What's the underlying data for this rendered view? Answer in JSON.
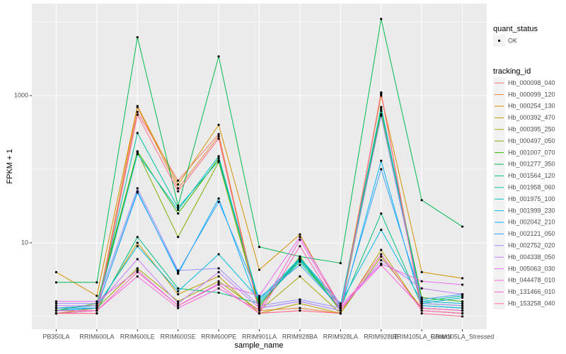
{
  "chart_data": {
    "type": "line",
    "x_label": "sample_name",
    "y_label": "FPKM + 1",
    "log_y": true,
    "grid": true,
    "ylim": [
      0.67,
      17800
    ],
    "yticks": [
      10,
      1000
    ],
    "minor_yticks": [
      1,
      100,
      10000
    ],
    "categories": [
      "PB350LA",
      "RRIM600LA",
      "RRIM600LE",
      "RRIM600SE",
      "RRIM600PE",
      "RRIM901LA",
      "RRIM928BA",
      "RRIM928LA",
      "RRIM928LE",
      "RRIM105LA_Control",
      "RRIM105LA_Stressed"
    ],
    "point_legend_title": "quant_status",
    "point_legend_label": "OK",
    "point_color": "#000000",
    "legend_title": "tracking_id",
    "legend_position": "right",
    "series": [
      {
        "name": "Hb_000098_040",
        "color": "#F8766D",
        "values": [
          1.1,
          1.1,
          600,
          70,
          300,
          1.1,
          1.2,
          1.1,
          1100,
          1.2,
          1.1
        ]
      },
      {
        "name": "Hb_000099_120",
        "color": "#EA8331",
        "values": [
          1.1,
          1.2,
          700,
          55,
          280,
          1.2,
          1.3,
          1.1,
          1050,
          1.3,
          1.2
        ]
      },
      {
        "name": "Hb_000254_130",
        "color": "#D89000",
        "values": [
          4.0,
          1.9,
          720,
          62,
          400,
          4.3,
          13,
          1.3,
          1000,
          4.0,
          3.3
        ]
      },
      {
        "name": "Hb_000392_470",
        "color": "#C09B00",
        "values": [
          1.1,
          1.3,
          10,
          2.0,
          3.5,
          1.1,
          1.5,
          1.1,
          8,
          1.2,
          1.1
        ]
      },
      {
        "name": "Hb_000395_250",
        "color": "#A3A500",
        "values": [
          1.2,
          1.3,
          4.5,
          1.6,
          3.0,
          1.2,
          3.5,
          1.1,
          6.5,
          1.3,
          1.2
        ]
      },
      {
        "name": "Hb_000497_050",
        "color": "#7CAE00",
        "values": [
          1.3,
          1.4,
          170,
          12,
          125,
          1.3,
          6.5,
          1.2,
          560,
          1.5,
          1.4
        ]
      },
      {
        "name": "Hb_001007_070",
        "color": "#39B600",
        "values": [
          1.2,
          1.5,
          175,
          25,
          140,
          1.4,
          6.0,
          1.2,
          620,
          1.8,
          1.6
        ]
      },
      {
        "name": "Hb_001277_350",
        "color": "#00BB4E",
        "values": [
          2.9,
          2.9,
          6200,
          32,
          3400,
          8.8,
          6.5,
          5.3,
          11000,
          38,
          16.6
        ]
      },
      {
        "name": "Hb_001564_120",
        "color": "#00BF7D",
        "values": [
          1.1,
          1.2,
          12,
          2.4,
          2.1,
          1.5,
          5.5,
          1.3,
          25,
          1.4,
          1.3
        ]
      },
      {
        "name": "Hb_001958_060",
        "color": "#00C1A3",
        "values": [
          1.2,
          1.3,
          310,
          30,
          130,
          1.6,
          6.0,
          1.4,
          700,
          1.6,
          1.9
        ]
      },
      {
        "name": "Hb_001975_100",
        "color": "#00BFC4",
        "values": [
          1.2,
          1.3,
          160,
          28,
          150,
          1.5,
          5.8,
          1.4,
          660,
          1.5,
          1.8
        ]
      },
      {
        "name": "Hb_001999_230",
        "color": "#00BAE0",
        "values": [
          1.3,
          1.4,
          9,
          2.2,
          7,
          1.7,
          6.2,
          1.5,
          15,
          1.6,
          1.5
        ]
      },
      {
        "name": "Hb_002042_210",
        "color": "#00B0F6",
        "values": [
          1.2,
          1.3,
          50,
          3.8,
          40,
          1.3,
          1.6,
          1.2,
          130,
          1.4,
          1.3
        ]
      },
      {
        "name": "Hb_002121_050",
        "color": "#35A2FF",
        "values": [
          1.3,
          1.3,
          48,
          4.0,
          36,
          1.8,
          5.0,
          1.3,
          100,
          1.7,
          2.0
        ]
      },
      {
        "name": "Hb_002752_020",
        "color": "#9590FF",
        "values": [
          1.5,
          1.5,
          55,
          4.2,
          4.5,
          1.4,
          1.7,
          1.3,
          530,
          1.5,
          1.4
        ]
      },
      {
        "name": "Hb_004338_050",
        "color": "#C77CFF",
        "values": [
          1.4,
          1.4,
          6.0,
          1.5,
          4.0,
          1.3,
          1.6,
          1.2,
          5.8,
          2.4,
          2.0
        ]
      },
      {
        "name": "Hb_005063_030",
        "color": "#E76BF3",
        "values": [
          1.6,
          1.6,
          4.2,
          1.4,
          2.8,
          1.9,
          12,
          1.4,
          5.2,
          3.0,
          2.7
        ]
      },
      {
        "name": "Hb_044478_010",
        "color": "#FA62DB",
        "values": [
          1.2,
          1.2,
          3.5,
          1.3,
          2.4,
          1.2,
          11,
          1.3,
          5.0,
          1.3,
          1.2
        ]
      },
      {
        "name": "Hb_131466_010",
        "color": "#FF62BC",
        "values": [
          1.1,
          1.2,
          4.0,
          1.4,
          2.7,
          1.1,
          9,
          1.2,
          7.0,
          1.2,
          1.1
        ]
      },
      {
        "name": "Hb_153258_040",
        "color": "#FF6C91",
        "values": [
          1.1,
          1.1,
          550,
          50,
          260,
          1.1,
          1.2,
          1.1,
          1100,
          1.1,
          1.0
        ]
      }
    ]
  }
}
